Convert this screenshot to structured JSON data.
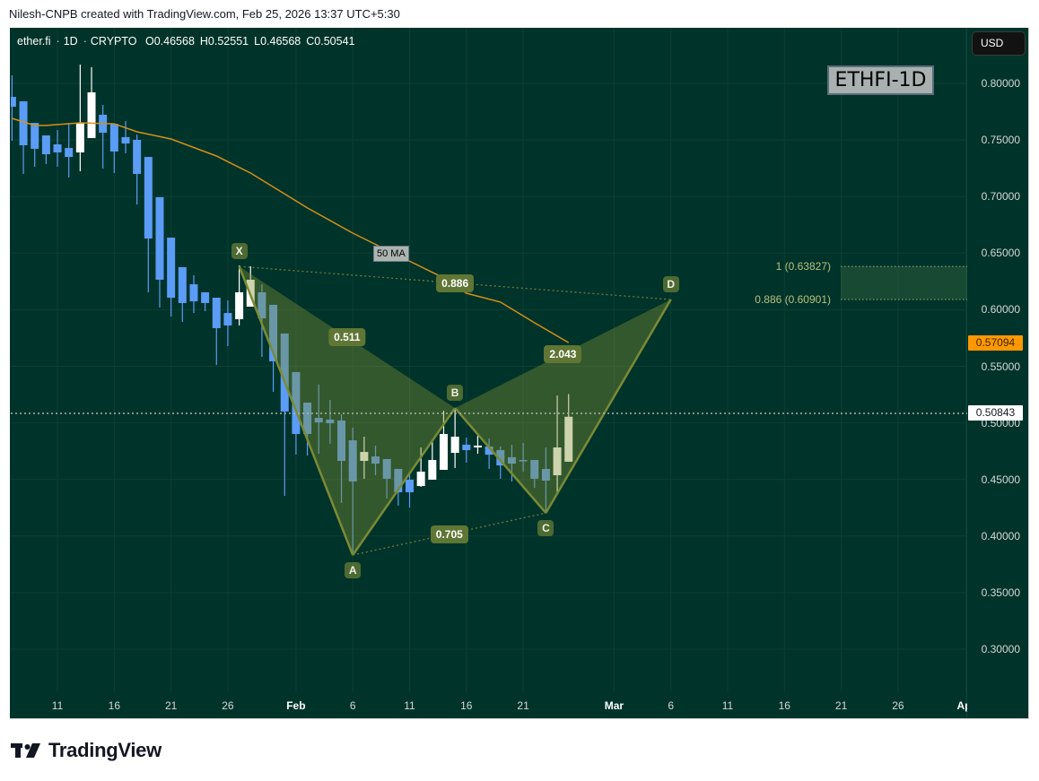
{
  "header": {
    "attribution": "Nilesh-CNPB created with TradingView.com, Feb 25, 2026 13:37 UTC+5:30"
  },
  "legend": {
    "symbol": "ether.fi",
    "sep": "·",
    "interval": "1D",
    "exchange": "CRYPTO",
    "open": "O0.46568",
    "high": "H0.52551",
    "low": "L0.46568",
    "close": "C0.50541"
  },
  "toolbar": {
    "currency": "USD"
  },
  "watermark": {
    "label": "ETHFI-1D"
  },
  "ma_label": "50 MA",
  "badges": {
    "ma_value": "0.57094",
    "last_price": "0.50843"
  },
  "fib": {
    "level_1": "1 (0.63827)",
    "level_0886": "0.886 (0.60901)",
    "price_1": 0.63827,
    "price_0886": 0.60901
  },
  "footer": {
    "brand": "TradingView"
  },
  "colors": {
    "background": "#00332a",
    "grid": "#0d4034",
    "bull": "#ffffff",
    "bear": "#5b9cf6",
    "ma": "#d4901a",
    "pattern_fill": "rgba(130,145,50,0.40)",
    "pattern_line": "#7a8b35",
    "last_price_line": "#a9b5aa",
    "ma_badge": "#ff9800"
  },
  "price_axis": {
    "ticks": [
      "0.80000",
      "0.75000",
      "0.70000",
      "0.65000",
      "0.60000",
      "0.55000",
      "0.50000",
      "0.45000",
      "0.40000",
      "0.35000",
      "0.30000"
    ]
  },
  "time_axis": {
    "ticks": [
      {
        "label": "11",
        "date": "Jan 11"
      },
      {
        "label": "16",
        "date": "Jan 16"
      },
      {
        "label": "21",
        "date": "Jan 21"
      },
      {
        "label": "26",
        "date": "Jan 26"
      },
      {
        "label": "Feb",
        "date": "Feb 1",
        "bold": true
      },
      {
        "label": "6",
        "date": "Feb 6"
      },
      {
        "label": "11",
        "date": "Feb 11"
      },
      {
        "label": "16",
        "date": "Feb 16"
      },
      {
        "label": "21",
        "date": "Feb 21"
      },
      {
        "label": "Mar",
        "date": "Mar 1",
        "bold": true
      },
      {
        "label": "6",
        "date": "Mar 6"
      },
      {
        "label": "11",
        "date": "Mar 11"
      },
      {
        "label": "16",
        "date": "Mar 16"
      },
      {
        "label": "21",
        "date": "Mar 21"
      },
      {
        "label": "26",
        "date": "Mar 26"
      },
      {
        "label": "Apr",
        "date": "Apr 1",
        "bold": true
      }
    ]
  },
  "chart_data": {
    "type": "candlestick",
    "title": "ETHFI-1D",
    "symbol": "ether.fi · 1D · CRYPTO",
    "xlabel": "",
    "ylabel": "USD",
    "ylim": [
      0.27,
      0.84
    ],
    "grid": true,
    "candles": [
      {
        "d": "Jan 7",
        "o": 0.7881,
        "h": 0.8071,
        "l": 0.7493,
        "c": 0.7794
      },
      {
        "d": "Jan 8",
        "o": 0.7842,
        "h": 0.7842,
        "l": 0.72,
        "c": 0.7453
      },
      {
        "d": "Jan 9",
        "o": 0.7651,
        "h": 0.7651,
        "l": 0.7263,
        "c": 0.7422
      },
      {
        "d": "Jan 10",
        "o": 0.754,
        "h": 0.754,
        "l": 0.7287,
        "c": 0.7374
      },
      {
        "d": "Jan 11",
        "o": 0.7461,
        "h": 0.7588,
        "l": 0.7263,
        "c": 0.739
      },
      {
        "d": "Jan 12",
        "o": 0.7429,
        "h": 0.7651,
        "l": 0.7168,
        "c": 0.735
      },
      {
        "d": "Jan 13",
        "o": 0.739,
        "h": 0.8166,
        "l": 0.7223,
        "c": 0.7651
      },
      {
        "d": "Jan 14",
        "o": 0.7517,
        "h": 0.8143,
        "l": 0.7517,
        "c": 0.7921
      },
      {
        "d": "Jan 15",
        "o": 0.7723,
        "h": 0.781,
        "l": 0.7247,
        "c": 0.7564
      },
      {
        "d": "Jan 16",
        "o": 0.7643,
        "h": 0.7643,
        "l": 0.7208,
        "c": 0.7398
      },
      {
        "d": "Jan 17",
        "o": 0.7525,
        "h": 0.7667,
        "l": 0.7382,
        "c": 0.7469
      },
      {
        "d": "Jan 18",
        "o": 0.7501,
        "h": 0.7548,
        "l": 0.693,
        "c": 0.72
      },
      {
        "d": "Jan 19",
        "o": 0.735,
        "h": 0.735,
        "l": 0.6154,
        "c": 0.6629
      },
      {
        "d": "Jan 20",
        "o": 0.6994,
        "h": 0.6994,
        "l": 0.6019,
        "c": 0.6265
      },
      {
        "d": "Jan 21",
        "o": 0.6637,
        "h": 0.6637,
        "l": 0.594,
        "c": 0.6106
      },
      {
        "d": "Jan 22",
        "o": 0.6376,
        "h": 0.6376,
        "l": 0.5892,
        "c": 0.6059
      },
      {
        "d": "Jan 23",
        "o": 0.6225,
        "h": 0.6304,
        "l": 0.5971,
        "c": 0.6074
      },
      {
        "d": "Jan 24",
        "o": 0.6154,
        "h": 0.6154,
        "l": 0.5987,
        "c": 0.6059
      },
      {
        "d": "Jan 25",
        "o": 0.6106,
        "h": 0.6106,
        "l": 0.5512,
        "c": 0.5837
      },
      {
        "d": "Jan 26",
        "o": 0.5971,
        "h": 0.6082,
        "l": 0.5678,
        "c": 0.5861
      },
      {
        "d": "Jan 27",
        "o": 0.5916,
        "h": 0.6391,
        "l": 0.5861,
        "c": 0.6154
      },
      {
        "d": "Jan 28",
        "o": 0.6027,
        "h": 0.6384,
        "l": 0.6027,
        "c": 0.6265
      },
      {
        "d": "Jan 29",
        "o": 0.6154,
        "h": 0.6225,
        "l": 0.5583,
        "c": 0.5924
      },
      {
        "d": "Jan 30",
        "o": 0.6043,
        "h": 0.6043,
        "l": 0.5274,
        "c": 0.5544
      },
      {
        "d": "Jan 31",
        "o": 0.5789,
        "h": 0.5789,
        "l": 0.4355,
        "c": 0.51
      },
      {
        "d": "Feb 1",
        "o": 0.5449,
        "h": 0.5449,
        "l": 0.4719,
        "c": 0.4902
      },
      {
        "d": "Feb 2",
        "o": 0.5179,
        "h": 0.5179,
        "l": 0.4711,
        "c": 0.4902
      },
      {
        "d": "Feb 3",
        "o": 0.5044,
        "h": 0.5338,
        "l": 0.4727,
        "c": 0.5005
      },
      {
        "d": "Feb 4",
        "o": 0.5029,
        "h": 0.5203,
        "l": 0.4815,
        "c": 0.4997
      },
      {
        "d": "Feb 5",
        "o": 0.5021,
        "h": 0.5076,
        "l": 0.4292,
        "c": 0.4664
      },
      {
        "d": "Feb 6",
        "o": 0.4846,
        "h": 0.4957,
        "l": 0.3832,
        "c": 0.4482
      },
      {
        "d": "Feb 7",
        "o": 0.4664,
        "h": 0.4878,
        "l": 0.4506,
        "c": 0.4743
      },
      {
        "d": "Feb 8",
        "o": 0.4703,
        "h": 0.4799,
        "l": 0.4537,
        "c": 0.464
      },
      {
        "d": "Feb 9",
        "o": 0.468,
        "h": 0.468,
        "l": 0.4331,
        "c": 0.4506
      },
      {
        "d": "Feb 10",
        "o": 0.4593,
        "h": 0.4593,
        "l": 0.4268,
        "c": 0.4387
      },
      {
        "d": "Feb 11",
        "o": 0.4498,
        "h": 0.4569,
        "l": 0.4252,
        "c": 0.4387
      },
      {
        "d": "Feb 12",
        "o": 0.4442,
        "h": 0.4783,
        "l": 0.4434,
        "c": 0.4569
      },
      {
        "d": "Feb 13",
        "o": 0.4498,
        "h": 0.4854,
        "l": 0.4498,
        "c": 0.4672
      },
      {
        "d": "Feb 14",
        "o": 0.4585,
        "h": 0.5108,
        "l": 0.4585,
        "c": 0.4902
      },
      {
        "d": "Feb 15",
        "o": 0.4735,
        "h": 0.5131,
        "l": 0.4601,
        "c": 0.4878
      },
      {
        "d": "Feb 16",
        "o": 0.4807,
        "h": 0.487,
        "l": 0.4648,
        "c": 0.4759
      },
      {
        "d": "Feb 17",
        "o": 0.4783,
        "h": 0.4886,
        "l": 0.4727,
        "c": 0.4799
      },
      {
        "d": "Feb 18",
        "o": 0.4791,
        "h": 0.4862,
        "l": 0.4593,
        "c": 0.4719
      },
      {
        "d": "Feb 19",
        "o": 0.4759,
        "h": 0.4791,
        "l": 0.4506,
        "c": 0.4624
      },
      {
        "d": "Feb 20",
        "o": 0.4696,
        "h": 0.4807,
        "l": 0.4482,
        "c": 0.464
      },
      {
        "d": "Feb 21",
        "o": 0.4672,
        "h": 0.4823,
        "l": 0.4569,
        "c": 0.4664
      },
      {
        "d": "Feb 22",
        "o": 0.4672,
        "h": 0.4672,
        "l": 0.4426,
        "c": 0.4506
      },
      {
        "d": "Feb 23",
        "o": 0.4593,
        "h": 0.4783,
        "l": 0.4204,
        "c": 0.449
      },
      {
        "d": "Feb 24",
        "o": 0.4537,
        "h": 0.5242,
        "l": 0.4387,
        "c": 0.4783
      },
      {
        "d": "Feb 25",
        "o": 0.46568,
        "h": 0.52551,
        "l": 0.46568,
        "c": 0.50541
      }
    ],
    "ma50": {
      "name": "50 MA",
      "points": [
        {
          "d": "Jan 7",
          "v": 0.7691
        },
        {
          "d": "Jan 9",
          "v": 0.7628
        },
        {
          "d": "Jan 10",
          "v": 0.7628
        },
        {
          "d": "Jan 13",
          "v": 0.7651
        },
        {
          "d": "Jan 16",
          "v": 0.7643
        },
        {
          "d": "Jan 18",
          "v": 0.7572
        },
        {
          "d": "Jan 21",
          "v": 0.7509
        },
        {
          "d": "Jan 25",
          "v": 0.7358
        },
        {
          "d": "Jan 28",
          "v": 0.7208
        },
        {
          "d": "Feb 2",
          "v": 0.6899
        },
        {
          "d": "Feb 6",
          "v": 0.6677
        },
        {
          "d": "Feb 10",
          "v": 0.6479
        },
        {
          "d": "Feb 14",
          "v": 0.6281
        },
        {
          "d": "Feb 16",
          "v": 0.6146
        },
        {
          "d": "Feb 19",
          "v": 0.6067
        },
        {
          "d": "Feb 22",
          "v": 0.5884
        },
        {
          "d": "Feb 25",
          "v": 0.57094
        }
      ]
    },
    "last_price": 0.50843,
    "harmonic_pattern": {
      "points": [
        {
          "name": "X",
          "d": "Jan 27",
          "p": 0.63827,
          "pos": "above"
        },
        {
          "name": "A",
          "d": "Feb 6",
          "p": 0.3832,
          "pos": "below"
        },
        {
          "name": "B",
          "d": "Feb 15",
          "p": 0.5131,
          "pos": "above"
        },
        {
          "name": "C",
          "d": "Feb 23",
          "p": 0.4204,
          "pos": "below"
        },
        {
          "name": "D",
          "d": "Mar 6",
          "p": 0.60901,
          "pos": "above"
        }
      ],
      "ratios": [
        {
          "from": "X",
          "to": "B",
          "label": "0.511"
        },
        {
          "from": "X",
          "to": "D",
          "label": "0.886"
        },
        {
          "from": "B",
          "to": "D",
          "label": "2.043"
        },
        {
          "from": "A",
          "to": "C",
          "label": "0.705"
        }
      ]
    },
    "fib_zone": {
      "from": "Mar 21",
      "to_edge": true,
      "top": 0.63827,
      "bottom": 0.60901,
      "labels": [
        "1 (0.63827)",
        "0.886 (0.60901)"
      ]
    }
  }
}
